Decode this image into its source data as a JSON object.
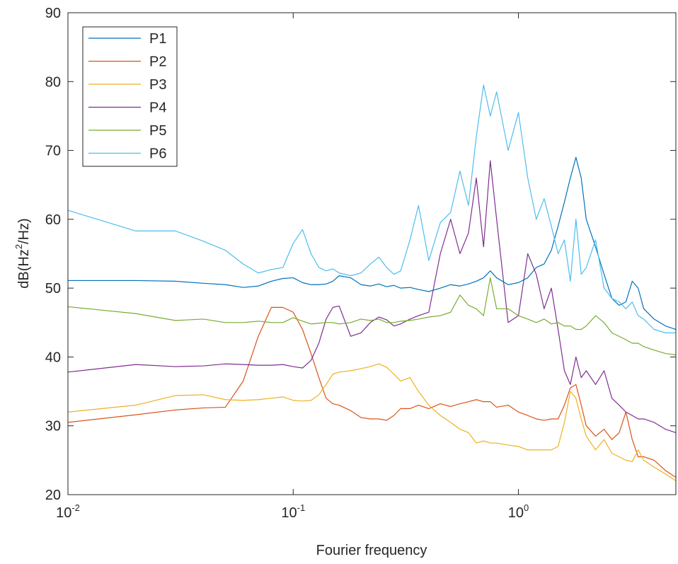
{
  "chart_data": {
    "type": "line",
    "x_label": "Fourier frequency",
    "y_label": "dB(Hz^2/Hz)",
    "xscale": "log",
    "xlim": [
      0.01,
      5
    ],
    "ylim": [
      20,
      90
    ],
    "xticks": [
      {
        "value": 0.01,
        "label": "10^-2"
      },
      {
        "value": 0.1,
        "label": "10^-1"
      },
      {
        "value": 1,
        "label": "10^0"
      }
    ],
    "yticks": [
      20,
      30,
      40,
      50,
      60,
      70,
      80,
      90
    ],
    "legend": "top-left",
    "x": [
      0.01,
      0.02,
      0.03,
      0.04,
      0.05,
      0.06,
      0.07,
      0.08,
      0.09,
      0.1,
      0.11,
      0.12,
      0.13,
      0.14,
      0.15,
      0.16,
      0.18,
      0.2,
      0.22,
      0.24,
      0.26,
      0.28,
      0.3,
      0.33,
      0.36,
      0.4,
      0.45,
      0.5,
      0.55,
      0.6,
      0.65,
      0.7,
      0.75,
      0.8,
      0.9,
      1.0,
      1.1,
      1.2,
      1.3,
      1.4,
      1.5,
      1.6,
      1.7,
      1.8,
      1.9,
      2.0,
      2.2,
      2.4,
      2.6,
      2.8,
      3.0,
      3.2,
      3.4,
      3.6,
      4.0,
      4.5,
      5.0
    ],
    "series": [
      {
        "name": "P1",
        "color": "#0072BD",
        "values": [
          51.1,
          51.1,
          51.0,
          50.7,
          50.5,
          50.1,
          50.3,
          51.0,
          51.4,
          51.5,
          50.8,
          50.5,
          50.5,
          50.6,
          51.0,
          51.8,
          51.5,
          50.5,
          50.3,
          50.6,
          50.2,
          50.4,
          50.0,
          50.1,
          49.8,
          49.5,
          50.0,
          50.5,
          50.3,
          50.6,
          51.0,
          51.5,
          52.5,
          51.5,
          50.5,
          50.8,
          51.5,
          53.0,
          53.5,
          55.5,
          59,
          62.5,
          66,
          69,
          66,
          60,
          56,
          52,
          48.5,
          47.5,
          48,
          51,
          50,
          47,
          45.5,
          44.5,
          44
        ]
      },
      {
        "name": "P2",
        "color": "#D95319",
        "values": [
          30.5,
          31.6,
          32.3,
          32.6,
          32.7,
          36.5,
          43,
          47.2,
          47.2,
          46.5,
          44,
          40.5,
          37,
          34,
          33.2,
          33,
          32.2,
          31.2,
          31,
          31,
          30.8,
          31.5,
          32.5,
          32.5,
          33,
          32.5,
          33.2,
          32.8,
          33.2,
          33.5,
          33.8,
          33.5,
          33.5,
          32.7,
          33,
          32,
          31.5,
          31,
          30.8,
          31,
          31,
          33,
          35.5,
          36,
          33,
          30,
          28.5,
          29.5,
          28,
          29,
          32,
          28,
          25.5,
          25.5,
          25,
          23.5,
          22.5
        ]
      },
      {
        "name": "P3",
        "color": "#EDB120",
        "values": [
          32,
          33,
          34.4,
          34.5,
          33.8,
          33.7,
          33.8,
          34,
          34.2,
          33.7,
          33.6,
          33.7,
          34.5,
          36,
          37.5,
          37.8,
          38,
          38.3,
          38.6,
          39,
          38.5,
          37.5,
          36.5,
          37,
          35,
          33,
          31.5,
          30.5,
          29.5,
          29,
          27.5,
          27.8,
          27.5,
          27.5,
          27.2,
          27,
          26.5,
          26.5,
          26.5,
          26.5,
          27,
          30.5,
          35,
          34,
          31,
          28.5,
          26.5,
          28,
          26,
          25.5,
          25,
          24.8,
          26.5,
          25,
          24,
          23,
          22
        ]
      },
      {
        "name": "P4",
        "color": "#7E2F8E",
        "values": [
          37.8,
          38.9,
          38.6,
          38.7,
          39,
          38.9,
          38.8,
          38.8,
          38.9,
          38.6,
          38.4,
          39.5,
          42,
          45.5,
          47.2,
          47.4,
          43,
          43.5,
          45,
          45.8,
          45.4,
          44.5,
          44.8,
          45.5,
          46,
          46.5,
          55,
          60,
          55,
          58,
          66,
          56,
          68.5,
          60,
          45,
          46,
          55,
          52,
          47,
          50,
          44,
          38,
          36,
          40,
          37,
          38,
          36,
          38,
          34,
          33,
          32,
          31.5,
          31,
          31,
          30.5,
          29.5,
          29
        ]
      },
      {
        "name": "P5",
        "color": "#77AC30",
        "values": [
          47.3,
          46.3,
          45.3,
          45.5,
          45,
          45,
          45.2,
          45,
          45,
          45.7,
          45.2,
          44.8,
          44.9,
          45,
          45,
          44.8,
          45,
          45.5,
          45.3,
          45.5,
          45,
          45,
          45.2,
          45.3,
          45.5,
          45.8,
          46,
          46.5,
          49,
          47.5,
          47,
          46,
          51.5,
          47,
          47,
          46,
          45.5,
          45,
          45.5,
          44.8,
          45,
          44.5,
          44.5,
          44,
          44,
          44.5,
          46,
          45,
          43.5,
          43,
          42.5,
          42,
          42,
          41.5,
          41,
          40.5,
          40.3
        ]
      },
      {
        "name": "P6",
        "color": "#4DBEEE",
        "values": [
          61.3,
          58.3,
          58.3,
          56.8,
          55.5,
          53.5,
          52.2,
          52.7,
          53,
          56.5,
          58.5,
          55,
          53,
          52.5,
          52.8,
          52.2,
          51.8,
          52.2,
          53.5,
          54.5,
          53,
          52,
          52.5,
          57,
          62,
          54,
          59.5,
          61,
          67,
          62,
          72,
          79.5,
          75,
          78.5,
          70,
          75.5,
          66,
          60,
          63,
          59,
          55,
          57,
          51,
          60,
          52,
          53,
          57,
          50,
          48.5,
          48,
          47,
          48,
          46,
          45.5,
          44,
          43.5,
          43.5
        ]
      }
    ]
  }
}
